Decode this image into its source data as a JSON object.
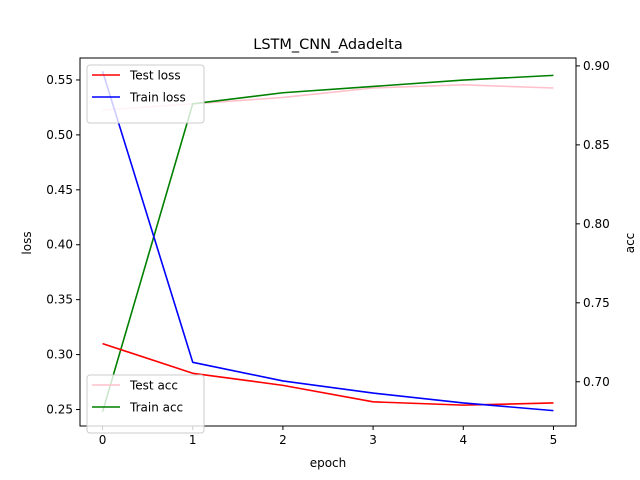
{
  "chart_data": {
    "type": "line",
    "title": "LSTM_CNN_Adadelta",
    "xlabel": "epoch",
    "ylabel_left": "loss",
    "ylabel_right": "acc",
    "x": [
      0,
      1,
      2,
      3,
      4,
      5
    ],
    "xlim": [
      -0.25,
      5.25
    ],
    "ylim_left": [
      0.235,
      0.57
    ],
    "ylim_right": [
      0.672,
      0.905
    ],
    "xticks": [
      "0",
      "1",
      "2",
      "3",
      "4",
      "5"
    ],
    "yticks_left": [
      "0.25",
      "0.30",
      "0.35",
      "0.40",
      "0.45",
      "0.50",
      "0.55"
    ],
    "yticks_right": [
      "0.70",
      "0.75",
      "0.80",
      "0.85",
      "0.90"
    ],
    "grid": false,
    "legend_left_placement": "upper-left",
    "legend_right_placement": "lower-left",
    "series_left": [
      {
        "name": "Test loss",
        "color": "#ff0000",
        "values": [
          0.31,
          0.283,
          0.272,
          0.257,
          0.254,
          0.256
        ]
      },
      {
        "name": "Train loss",
        "color": "#0000ff",
        "values": [
          0.558,
          0.293,
          0.276,
          0.265,
          0.256,
          0.249
        ]
      }
    ],
    "series_right": [
      {
        "name": "Test acc",
        "color": "#ffc0cb",
        "values": [
          0.872,
          0.876,
          0.88,
          0.886,
          0.888,
          0.886
        ]
      },
      {
        "name": "Train acc",
        "color": "#008000",
        "values": [
          0.681,
          0.876,
          0.883,
          0.887,
          0.891,
          0.894
        ]
      }
    ]
  }
}
